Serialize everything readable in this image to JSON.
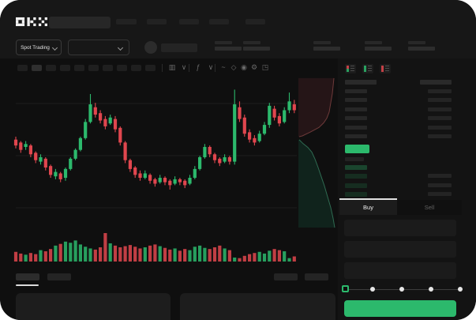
{
  "header": {
    "logo_text": "OKX"
  },
  "ticker": {
    "market_selector_label": "Spot Trading"
  },
  "toolbar": {
    "icons": [
      {
        "name": "chart-style-icon",
        "glyph": "▥"
      },
      {
        "name": "chart-style-chevron-icon",
        "glyph": "∨"
      },
      {
        "name": "indicators-icon",
        "glyph": "ƒ"
      },
      {
        "name": "indicators-chevron-icon",
        "glyph": "∨"
      },
      {
        "name": "compare-icon",
        "glyph": "~"
      },
      {
        "name": "draw-tools-icon",
        "glyph": "◇"
      },
      {
        "name": "screenshot-icon",
        "glyph": "◉"
      },
      {
        "name": "chart-settings-icon",
        "glyph": "⚙"
      },
      {
        "name": "fullscreen-icon",
        "glyph": "◳"
      }
    ]
  },
  "order_book": {
    "view_icons": [
      {
        "name": "book-view-combined-icon",
        "top": "red",
        "bottom": "green"
      },
      {
        "name": "book-view-bids-icon",
        "top": "green",
        "bottom": "green"
      },
      {
        "name": "book-view-asks-icon",
        "top": "red",
        "bottom": "red"
      }
    ],
    "ask_rows": 6,
    "bid_rows": 4,
    "last_price_color": "green"
  },
  "order_form": {
    "tabs": [
      {
        "label": "Buy"
      },
      {
        "label": "Sell"
      }
    ],
    "active_tab": "Buy",
    "input_count": 3,
    "slider_steps": 5,
    "slider_position": 0
  },
  "skeleton": {
    "topnav_items": 5,
    "ticker_stats": 5,
    "timeframe_pills": 10,
    "active_timeframe_index": 1,
    "bottom_tabs": 4
  },
  "colors": {
    "bg": "#0f0f0f",
    "green": "#2cb96c",
    "red": "#e0464e",
    "grid": "#1c1c1c",
    "bid_tint": "rgba(44,185,108,0.16)",
    "bid_tint_strong": "rgba(44,185,108,0.30)",
    "depth_red_fill": "#251517",
    "depth_red_line": "#6e3a3a",
    "depth_green_fill": "#10231c",
    "depth_green_line": "#2f6b52"
  },
  "chart_data": [
    {
      "type": "candlestick",
      "title": "",
      "price_range": [
        0,
        100
      ],
      "grid": "horizontal",
      "candles": [
        [
          62,
          58,
          64,
          56
        ],
        [
          60,
          55,
          61,
          53
        ],
        [
          57,
          59,
          61,
          55
        ],
        [
          58,
          52,
          59,
          50
        ],
        [
          53,
          48,
          54,
          46
        ],
        [
          47,
          50,
          52,
          45
        ],
        [
          49,
          43,
          50,
          41
        ],
        [
          44,
          38,
          45,
          36
        ],
        [
          37,
          40,
          42,
          35
        ],
        [
          39,
          35,
          40,
          33
        ],
        [
          36,
          42,
          43,
          34
        ],
        [
          42,
          49,
          50,
          41
        ],
        [
          49,
          55,
          56,
          48
        ],
        [
          55,
          63,
          64,
          54
        ],
        [
          63,
          74,
          76,
          62
        ],
        [
          74,
          86,
          93,
          73
        ],
        [
          84,
          79,
          87,
          77
        ],
        [
          80,
          75,
          82,
          73
        ],
        [
          76,
          71,
          78,
          69
        ],
        [
          73,
          77,
          79,
          72
        ],
        [
          76,
          69,
          78,
          67
        ],
        [
          70,
          60,
          71,
          58
        ],
        [
          60,
          48,
          61,
          46
        ],
        [
          48,
          42,
          49,
          40
        ],
        [
          43,
          38,
          44,
          36
        ],
        [
          39,
          36,
          41,
          34
        ],
        [
          36,
          39,
          41,
          35
        ],
        [
          38,
          34,
          39,
          32
        ],
        [
          35,
          32,
          36,
          30
        ],
        [
          33,
          36,
          38,
          32
        ],
        [
          36,
          33,
          37,
          31
        ],
        [
          34,
          31,
          35,
          28
        ],
        [
          32,
          35,
          37,
          31
        ],
        [
          35,
          33,
          36,
          31
        ],
        [
          34,
          31,
          35,
          29
        ],
        [
          32,
          36,
          38,
          31
        ],
        [
          36,
          42,
          44,
          35
        ],
        [
          42,
          50,
          51,
          41
        ],
        [
          50,
          57,
          59,
          49
        ],
        [
          57,
          52,
          58,
          50
        ],
        [
          52,
          48,
          53,
          46
        ],
        [
          49,
          46,
          50,
          44
        ],
        [
          47,
          50,
          52,
          46
        ],
        [
          50,
          47,
          51,
          45
        ],
        [
          47,
          86,
          96,
          45
        ],
        [
          84,
          76,
          88,
          74
        ],
        [
          77,
          66,
          79,
          64
        ],
        [
          67,
          62,
          69,
          60
        ],
        [
          63,
          60,
          65,
          58
        ],
        [
          61,
          66,
          68,
          60
        ],
        [
          66,
          72,
          74,
          65
        ],
        [
          72,
          85,
          87,
          70
        ],
        [
          83,
          77,
          85,
          75
        ],
        [
          78,
          73,
          80,
          71
        ],
        [
          74,
          82,
          84,
          73
        ],
        [
          82,
          88,
          94,
          80
        ],
        [
          86,
          82,
          89,
          80
        ]
      ],
      "volumes": [
        34,
        28,
        24,
        30,
        26,
        40,
        36,
        44,
        56,
        62,
        70,
        66,
        74,
        60,
        52,
        46,
        42,
        50,
        100,
        64,
        56,
        50,
        54,
        58,
        52,
        46,
        50,
        56,
        60,
        54,
        48,
        42,
        46,
        38,
        44,
        40,
        52,
        56,
        48,
        44,
        50,
        56,
        46,
        40,
        14,
        12,
        20,
        26,
        30,
        34,
        28,
        38,
        44,
        40,
        36,
        12,
        18
      ]
    },
    {
      "type": "area",
      "name": "depth",
      "asks_line": [
        [
          0.9,
          0.02
        ],
        [
          0.88,
          0.07
        ],
        [
          0.86,
          0.12
        ],
        [
          0.82,
          0.18
        ],
        [
          0.78,
          0.24
        ],
        [
          0.72,
          0.28
        ],
        [
          0.64,
          0.31
        ],
        [
          0.52,
          0.34
        ],
        [
          0.3,
          0.37
        ],
        [
          0.1,
          0.395
        ],
        [
          0.02,
          0.4
        ]
      ],
      "bids_line": [
        [
          0.02,
          0.42
        ],
        [
          0.12,
          0.445
        ],
        [
          0.24,
          0.47
        ],
        [
          0.34,
          0.5
        ],
        [
          0.42,
          0.545
        ],
        [
          0.5,
          0.6
        ],
        [
          0.58,
          0.66
        ],
        [
          0.66,
          0.72
        ],
        [
          0.74,
          0.79
        ],
        [
          0.82,
          0.86
        ],
        [
          0.88,
          0.93
        ],
        [
          0.92,
          0.99
        ]
      ]
    }
  ]
}
